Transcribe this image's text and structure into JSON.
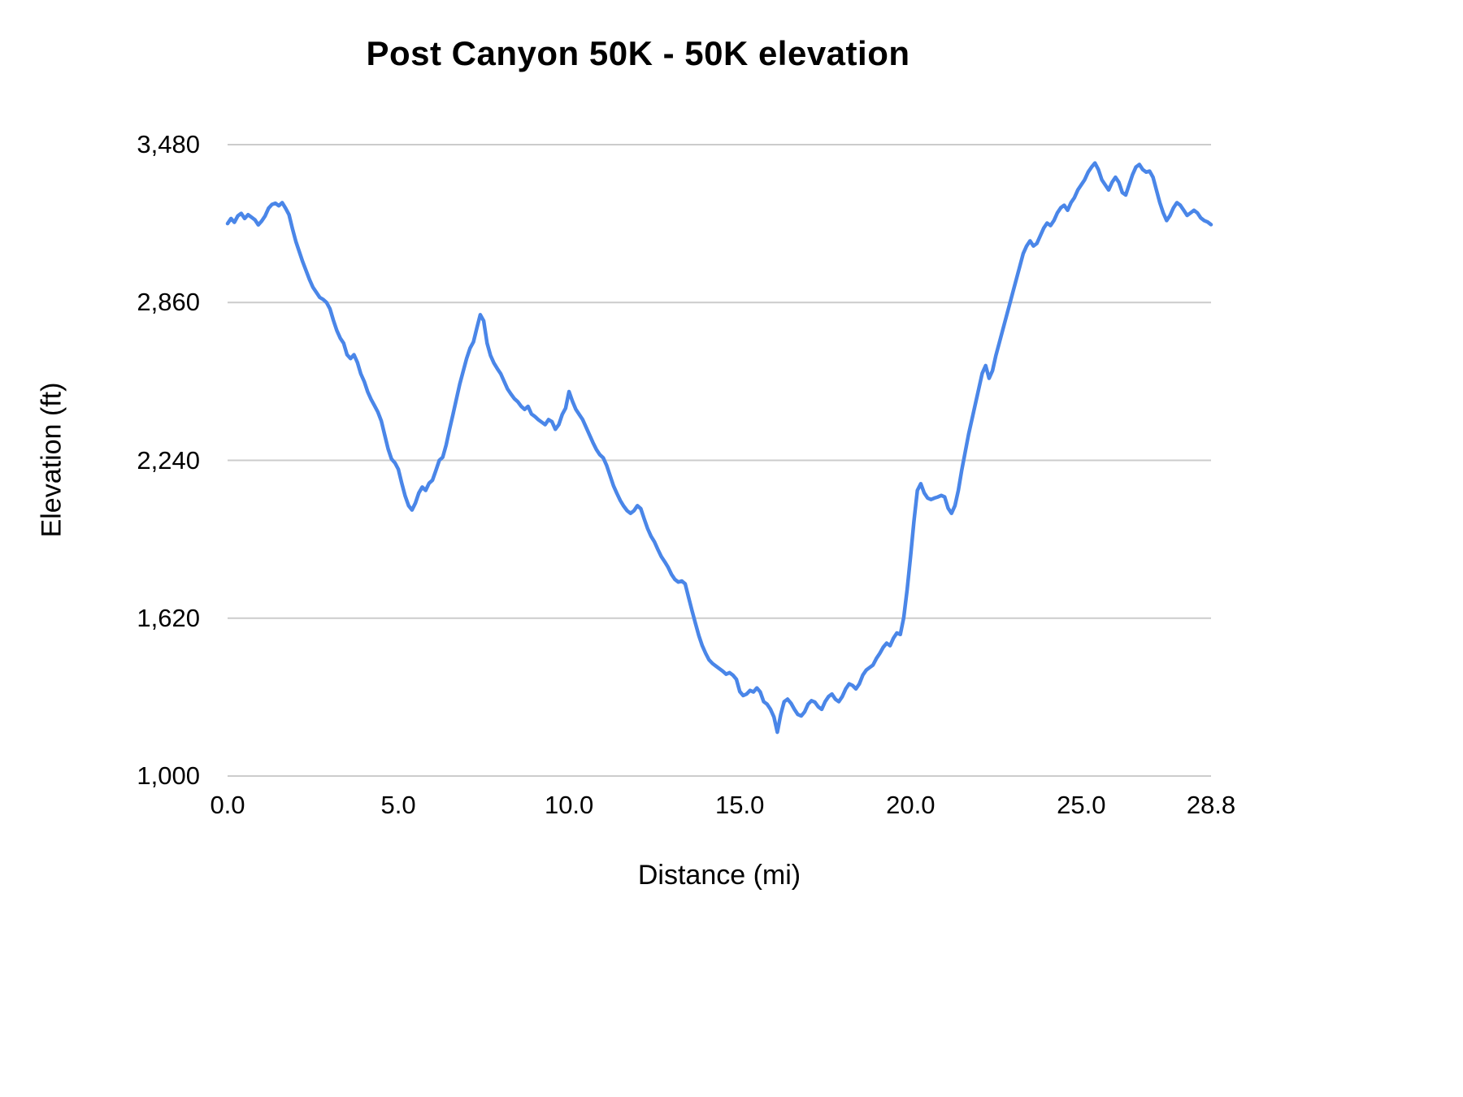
{
  "chart_data": {
    "type": "line",
    "title": "Post Canyon 50K - 50K elevation",
    "xlabel": "Distance (mi)",
    "ylabel": "Elevation (ft)",
    "xlim": [
      0,
      28.8
    ],
    "ylim": [
      1000,
      3480
    ],
    "xticks": [
      0,
      5,
      10,
      15,
      20,
      25,
      28.8
    ],
    "xtick_labels": [
      "0.0",
      "5.0",
      "10.0",
      "15.0",
      "20.0",
      "25.0",
      "28.8"
    ],
    "yticks": [
      1000,
      1620,
      2240,
      2860,
      3480
    ],
    "ytick_labels": [
      "1,000",
      "1,620",
      "2,240",
      "2,860",
      "3,480"
    ],
    "grid": "horizontal",
    "legend": "none",
    "line_color": "#4a86e8",
    "gridline_color": "#cccccc",
    "series": [
      {
        "name": "50K elevation",
        "x_start": 0,
        "x_step": 0.1,
        "x_end": 28.8,
        "values": [
          3170,
          3190,
          3175,
          3200,
          3210,
          3190,
          3205,
          3195,
          3185,
          3165,
          3180,
          3200,
          3230,
          3245,
          3250,
          3240,
          3252,
          3230,
          3205,
          3150,
          3100,
          3060,
          3020,
          2985,
          2950,
          2920,
          2900,
          2880,
          2872,
          2860,
          2835,
          2790,
          2750,
          2720,
          2700,
          2655,
          2640,
          2655,
          2625,
          2580,
          2550,
          2510,
          2480,
          2455,
          2430,
          2395,
          2340,
          2285,
          2245,
          2230,
          2205,
          2150,
          2100,
          2062,
          2045,
          2072,
          2112,
          2135,
          2122,
          2150,
          2162,
          2200,
          2240,
          2252,
          2300,
          2362,
          2420,
          2480,
          2540,
          2590,
          2640,
          2680,
          2705,
          2760,
          2812,
          2788,
          2700,
          2652,
          2622,
          2600,
          2580,
          2550,
          2520,
          2500,
          2482,
          2470,
          2452,
          2440,
          2452,
          2422,
          2412,
          2400,
          2390,
          2380,
          2400,
          2392,
          2362,
          2380,
          2420,
          2445,
          2510,
          2472,
          2440,
          2420,
          2400,
          2370,
          2340,
          2310,
          2282,
          2262,
          2250,
          2220,
          2180,
          2140,
          2110,
          2082,
          2060,
          2042,
          2032,
          2042,
          2062,
          2050,
          2010,
          1972,
          1942,
          1920,
          1890,
          1862,
          1842,
          1820,
          1792,
          1772,
          1762,
          1766,
          1755,
          1702,
          1650,
          1600,
          1552,
          1512,
          1482,
          1456,
          1442,
          1432,
          1422,
          1412,
          1400,
          1406,
          1396,
          1380,
          1332,
          1316,
          1322,
          1336,
          1330,
          1346,
          1330,
          1292,
          1282,
          1262,
          1232,
          1172,
          1242,
          1292,
          1302,
          1286,
          1262,
          1242,
          1236,
          1252,
          1282,
          1296,
          1290,
          1272,
          1262,
          1292,
          1312,
          1322,
          1302,
          1292,
          1312,
          1342,
          1362,
          1356,
          1342,
          1362,
          1396,
          1416,
          1426,
          1436,
          1462,
          1482,
          1506,
          1522,
          1512,
          1542,
          1562,
          1556,
          1622,
          1732,
          1862,
          2002,
          2122,
          2148,
          2112,
          2092,
          2086,
          2092,
          2096,
          2102,
          2096,
          2052,
          2032,
          2062,
          2122,
          2202,
          2272,
          2342,
          2402,
          2462,
          2522,
          2582,
          2612,
          2562,
          2592,
          2652,
          2702,
          2752,
          2802,
          2852,
          2902,
          2952,
          3002,
          3052,
          3082,
          3102,
          3082,
          3092,
          3122,
          3152,
          3172,
          3162,
          3182,
          3212,
          3232,
          3242,
          3222,
          3252,
          3272,
          3302,
          3322,
          3342,
          3372,
          3392,
          3408,
          3382,
          3342,
          3322,
          3302,
          3332,
          3352,
          3332,
          3292,
          3282,
          3322,
          3362,
          3392,
          3402,
          3382,
          3372,
          3376,
          3352,
          3302,
          3252,
          3212,
          3182,
          3202,
          3232,
          3252,
          3242,
          3222,
          3202,
          3212,
          3222,
          3212,
          3192,
          3182,
          3176,
          3166
        ]
      }
    ]
  }
}
